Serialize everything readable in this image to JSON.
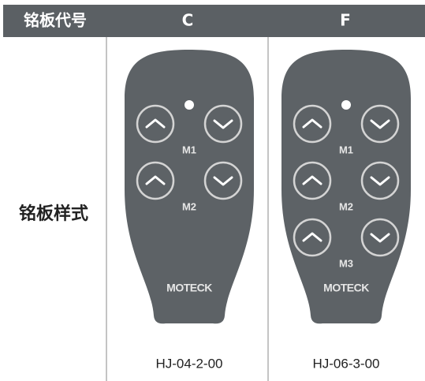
{
  "header": {
    "label": "铭板代号",
    "columns": [
      "C",
      "F"
    ]
  },
  "row": {
    "label": "铭板样式",
    "plates": [
      {
        "button_labels": [
          "M1",
          "M2"
        ],
        "brand": "MOTECK",
        "code": "HJ-04-2-00"
      },
      {
        "button_labels": [
          "M1",
          "M2",
          "M3"
        ],
        "brand": "MOTECK",
        "code": "HJ-06-3-00"
      }
    ]
  }
}
